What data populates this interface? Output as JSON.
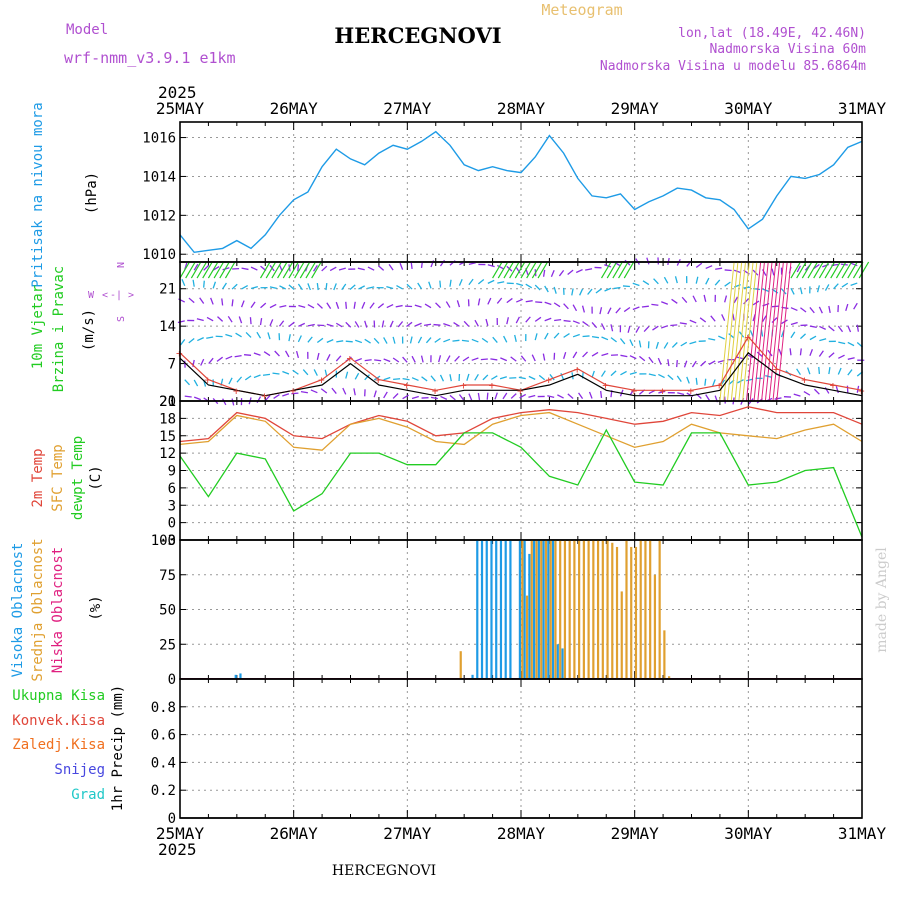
{
  "header": {
    "model_label": "Model",
    "model_name": "wrf-nmm_v3.9.1 e1km",
    "station": "HERCEGNOVI",
    "meteogram": "Meteogram",
    "lonlat": "lon,lat (18.49E, 42.46N)",
    "altitude": "Nadmorska Visina 60m",
    "model_altitude": "Nadmorska Visina u modelu 85.6864m"
  },
  "footer": {
    "station": "HERCEGNOVI",
    "credit": "made by Angel"
  },
  "time_axis": {
    "year": "2025",
    "labels": [
      "25MAY",
      "26MAY",
      "27MAY",
      "28MAY",
      "29MAY",
      "30MAY",
      "31MAY"
    ]
  },
  "wind_legend": {
    "west": "W",
    "north": "N",
    "south": "S",
    "lt": "<",
    "gt": ">",
    "bar": "|",
    "dash": "-"
  },
  "colors": {
    "pressure": "#1e9be6",
    "temp2m": "#e0463a",
    "sfc_temp": "#e0a030",
    "dewpt": "#22cc22",
    "high_cloud": "#1e9be6",
    "mid_cloud": "#e0a030",
    "low_cloud": "#e02080",
    "precip_total": "#22cc22",
    "precip_conv": "#e0463a",
    "precip_frozen": "#f07020",
    "snow": "#4848e0",
    "hail": "#20c8c8",
    "wind_max": "#e0463a",
    "wind_speed": "#000000"
  },
  "chart_data": [
    {
      "type": "line",
      "panel": "pressure",
      "ylabel": [
        "Pritisak na nivou mora",
        "(hPa)"
      ],
      "ylim": [
        1009.6,
        1016.8
      ],
      "yticks": [
        1010,
        1012,
        1014,
        1016
      ],
      "grid": true,
      "x": [
        0,
        3,
        6,
        9,
        12,
        15,
        18,
        21,
        24,
        27,
        30,
        33,
        36,
        39,
        42,
        45,
        48,
        51,
        54,
        57,
        60,
        63,
        66,
        69,
        72,
        75,
        78,
        81,
        84,
        87,
        90,
        93,
        96,
        99,
        102,
        105,
        108,
        111,
        114,
        117,
        120,
        123,
        126,
        129,
        132,
        135,
        138,
        141,
        144
      ],
      "series": [
        {
          "values": [
            1011.0,
            1010.1,
            1010.2,
            1010.3,
            1010.7,
            1010.3,
            1011.0,
            1012.0,
            1012.8,
            1013.2,
            1014.5,
            1015.4,
            1014.9,
            1014.6,
            1015.2,
            1015.6,
            1015.4,
            1015.8,
            1016.3,
            1015.6,
            1014.6,
            1014.3,
            1014.5,
            1014.3,
            1014.2,
            1015.0,
            1016.1,
            1015.2,
            1013.9,
            1013.0,
            1012.9,
            1013.1,
            1012.3,
            1012.7,
            1013.0,
            1013.4,
            1013.3,
            1012.9,
            1012.8,
            1012.3,
            1011.3,
            1011.8,
            1013.0,
            1014.0,
            1013.9,
            1014.1,
            1014.6,
            1015.5,
            1015.8
          ]
        }
      ]
    },
    {
      "type": "line",
      "panel": "wind",
      "ylabel": [
        "10m Vjetar",
        "Brzina i Pravac",
        "(m/s)"
      ],
      "ylim": [
        0,
        26
      ],
      "yticks": [
        0,
        7,
        14,
        21
      ],
      "grid": true,
      "x": [
        0,
        6,
        12,
        18,
        24,
        30,
        36,
        42,
        48,
        54,
        60,
        66,
        72,
        78,
        84,
        90,
        96,
        102,
        108,
        114,
        120,
        126,
        132,
        138,
        144
      ],
      "series": [
        {
          "values": [
            9,
            4,
            2,
            1,
            2,
            4,
            8,
            4,
            3,
            2,
            3,
            3,
            2,
            4,
            6,
            3,
            2,
            2,
            2,
            3,
            12,
            6,
            4,
            3,
            2
          ]
        },
        {
          "values": [
            8,
            3,
            2,
            1,
            2,
            3,
            7,
            3,
            2,
            1,
            2,
            2,
            2,
            3,
            5,
            2,
            1,
            1,
            1,
            2,
            9,
            5,
            3,
            2,
            1
          ]
        }
      ]
    },
    {
      "type": "line",
      "panel": "temperature",
      "ylabel": [
        "2m Temp",
        "SFC Temp",
        "dewpt Temp",
        "(C)"
      ],
      "ylim": [
        -3,
        21
      ],
      "yticks": [
        -3,
        0,
        3,
        6,
        9,
        12,
        15,
        18,
        21
      ],
      "grid": true,
      "x": [
        0,
        6,
        12,
        18,
        24,
        30,
        36,
        42,
        48,
        54,
        60,
        66,
        72,
        78,
        84,
        90,
        96,
        102,
        108,
        114,
        120,
        126,
        132,
        138,
        144
      ],
      "series": [
        {
          "values": [
            14,
            14.5,
            19,
            18,
            15,
            14.5,
            17,
            18.5,
            17.5,
            15,
            15.5,
            18,
            19,
            19.5,
            19,
            18,
            17,
            17.5,
            19,
            18.5,
            20,
            19,
            19,
            19,
            17
          ]
        },
        {
          "values": [
            13.5,
            14,
            18.5,
            17.5,
            13,
            12.5,
            17,
            18,
            16.5,
            14,
            13.5,
            17,
            18.5,
            19,
            17,
            15,
            13,
            14,
            17,
            15.5,
            15,
            14.5,
            16,
            17,
            14
          ]
        },
        {
          "values": [
            11.5,
            4.5,
            12,
            11,
            2,
            5,
            12,
            12,
            10,
            10,
            15.5,
            15.5,
            13,
            8,
            6.5,
            16,
            7,
            6.5,
            15.5,
            15.5,
            6.5,
            7,
            9,
            9.5,
            -2.5
          ]
        }
      ]
    },
    {
      "type": "bar",
      "panel": "clouds",
      "ylabel": [
        "Visoka Oblacnost",
        "Srednja Oblacnost",
        "Niska Oblacnost",
        "(%)"
      ],
      "ylim": [
        0,
        100
      ],
      "yticks": [
        0,
        25,
        50,
        75,
        100
      ],
      "grid": true,
      "series": [
        {
          "x": [
            12,
            13,
            62,
            63,
            64,
            65,
            66,
            67,
            68,
            69,
            70,
            72,
            73,
            74,
            75,
            76,
            77,
            78,
            79,
            80,
            81
          ],
          "values": [
            3,
            4,
            3,
            100,
            100,
            100,
            100,
            100,
            100,
            100,
            100,
            100,
            100,
            90,
            100,
            100,
            100,
            100,
            100,
            25,
            22
          ]
        },
        {
          "x": [
            59,
            72,
            73,
            74,
            75,
            76,
            77,
            78,
            79,
            80,
            81,
            82,
            83,
            84,
            85,
            86,
            87,
            88,
            89,
            90,
            91,
            92,
            93,
            94,
            95,
            96,
            97,
            98,
            99,
            100,
            101,
            102,
            103
          ],
          "values": [
            20,
            100,
            60,
            100,
            100,
            100,
            100,
            100,
            100,
            100,
            100,
            100,
            100,
            100,
            100,
            100,
            100,
            100,
            100,
            100,
            98,
            95,
            63,
            100,
            95,
            95,
            100,
            100,
            100,
            75,
            100,
            35,
            2
          ]
        },
        {
          "x": [],
          "values": []
        }
      ]
    },
    {
      "type": "bar",
      "panel": "precip",
      "ylabel": [
        "Ukupna Kisa",
        "Konvek.Kisa",
        "Zaledj.Kisa",
        "Snijeg",
        "Grad",
        "1hr Precip (mm)"
      ],
      "ylim": [
        0,
        1
      ],
      "yticks": [
        0,
        0.2,
        0.4,
        0.6,
        0.8
      ],
      "grid": true,
      "series": [
        {
          "x": [],
          "values": []
        }
      ]
    }
  ]
}
